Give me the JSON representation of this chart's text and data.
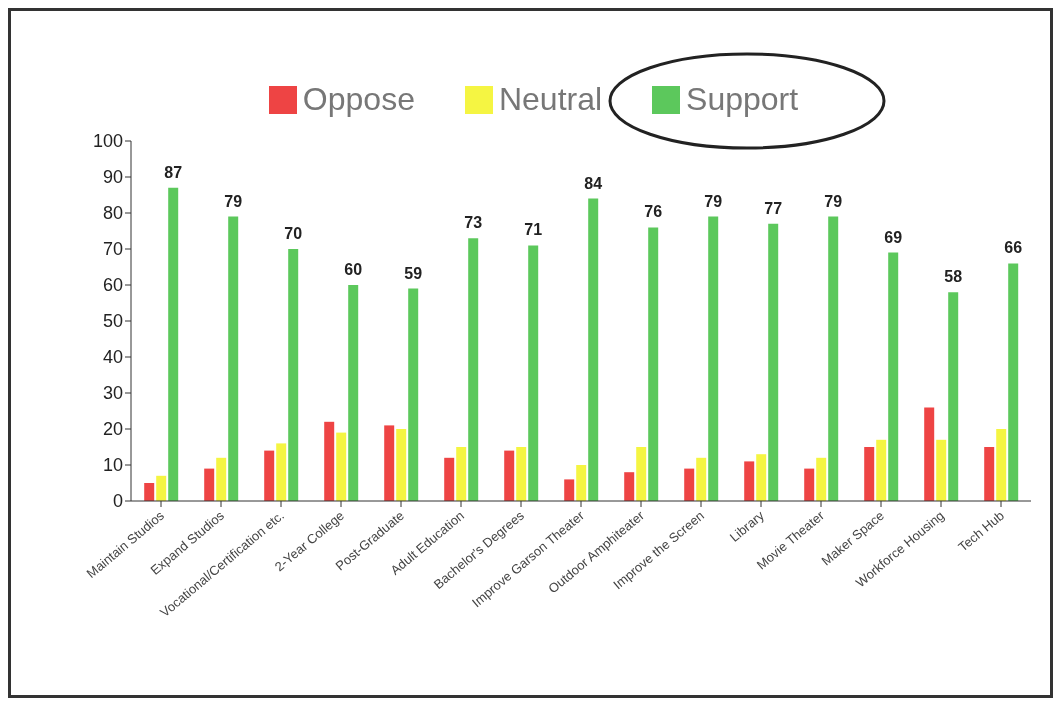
{
  "chart_data": {
    "type": "bar",
    "categories": [
      "Maintain Studios",
      "Expand Studios",
      "Vocational/Certification etc.",
      "2-Year College",
      "Post-Graduate",
      "Adult Education",
      "Bachelor's Degrees",
      "Improve Garson Theater",
      "Outdoor Amphiteater",
      "Improve the Screen",
      "Library",
      "Movie Theater",
      "Maker Space",
      "Workforce Housing",
      "Tech Hub"
    ],
    "series": [
      {
        "name": "Oppose",
        "color": "#ee4444",
        "values": [
          5,
          9,
          14,
          22,
          21,
          12,
          14,
          6,
          8,
          9,
          11,
          9,
          15,
          26,
          15
        ]
      },
      {
        "name": "Neutral",
        "color": "#f5f542",
        "values": [
          7,
          12,
          16,
          19,
          20,
          15,
          15,
          10,
          15,
          12,
          13,
          12,
          17,
          17,
          20
        ]
      },
      {
        "name": "Support",
        "color": "#5cc85c",
        "values": [
          87,
          79,
          70,
          60,
          59,
          73,
          71,
          84,
          76,
          79,
          77,
          79,
          69,
          58,
          66
        ],
        "value_labels": [
          "87",
          "79",
          "70",
          "60",
          "59",
          "73",
          "71",
          "84",
          "76",
          "79",
          "77",
          "79",
          "69",
          "58",
          "66"
        ]
      }
    ],
    "ylim": [
      0,
      100
    ],
    "yticks": [
      0,
      10,
      20,
      30,
      40,
      50,
      60,
      70,
      80,
      90,
      100
    ],
    "grid": false,
    "legend": "top"
  }
}
